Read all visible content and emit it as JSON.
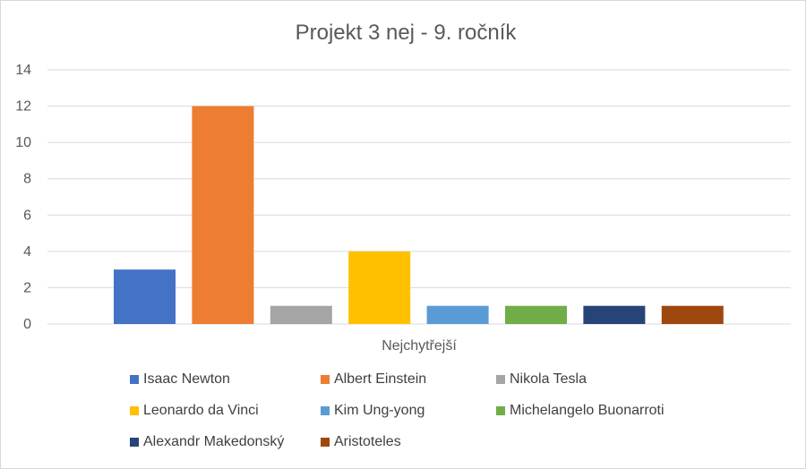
{
  "chart_data": {
    "type": "bar",
    "title": "Projekt 3 nej - 9. ročník",
    "categories": [
      "Nejchytřejší"
    ],
    "series": [
      {
        "name": "Isaac Newton",
        "values": [
          3
        ],
        "color": "#4472c4"
      },
      {
        "name": "Albert Einstein",
        "values": [
          12
        ],
        "color": "#ed7d31"
      },
      {
        "name": "Nikola Tesla",
        "values": [
          1
        ],
        "color": "#a5a5a5"
      },
      {
        "name": "Leonardo da Vinci",
        "values": [
          4
        ],
        "color": "#ffc000"
      },
      {
        "name": "Kim Ung-yong",
        "values": [
          1
        ],
        "color": "#5b9bd5"
      },
      {
        "name": "Michelangelo Buonarroti",
        "values": [
          1
        ],
        "color": "#70ad47"
      },
      {
        "name": "Alexandr Makedonský",
        "values": [
          1
        ],
        "color": "#264478"
      },
      {
        "name": "Aristoteles",
        "values": [
          1
        ],
        "color": "#9e480e"
      }
    ],
    "xlabel": "",
    "ylabel": "",
    "ylim": [
      0,
      14
    ],
    "yticks": [
      "0",
      "2",
      "4",
      "6",
      "8",
      "10",
      "12",
      "14"
    ],
    "grid": true,
    "legend_position": "bottom"
  }
}
